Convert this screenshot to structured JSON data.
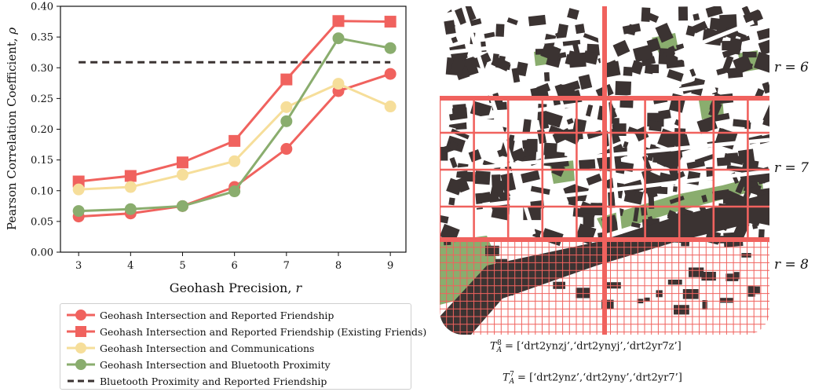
{
  "chart_data": {
    "type": "line",
    "xlabel": "Geohash Precision, r",
    "ylabel": "Pearson Correlation Coefficient, ρ",
    "x": [
      3,
      4,
      5,
      6,
      7,
      8,
      9
    ],
    "xticks": [
      "3",
      "4",
      "5",
      "6",
      "7",
      "8",
      "9"
    ],
    "yticks": [
      "0.00",
      "0.05",
      "0.10",
      "0.15",
      "0.20",
      "0.25",
      "0.30",
      "0.35",
      "0.40"
    ],
    "xlim": [
      2.65,
      9.3
    ],
    "ylim": [
      0,
      0.4
    ],
    "grid": false,
    "legend_placement": "below",
    "series": [
      {
        "name": "Geohash Intersection and Reported Friendship",
        "marker": "circle",
        "color": "#f0625e",
        "values": [
          0.058,
          0.063,
          0.075,
          0.106,
          0.168,
          0.262,
          0.29
        ]
      },
      {
        "name": "Geohash Intersection and Reported Friendship (Existing Friends)",
        "marker": "square",
        "color": "#f0625e",
        "values": [
          0.115,
          0.124,
          0.146,
          0.181,
          0.281,
          0.376,
          0.375
        ]
      },
      {
        "name": "Geohash Intersection and Communications",
        "marker": "circle",
        "color": "#f6de9a",
        "values": [
          0.102,
          0.106,
          0.126,
          0.148,
          0.236,
          0.274,
          0.237
        ]
      },
      {
        "name": "Geohash Intersection and Bluetooth Proximity",
        "marker": "circle",
        "color": "#8aad6e",
        "values": [
          0.067,
          0.07,
          0.075,
          0.099,
          0.213,
          0.348,
          0.332
        ]
      },
      {
        "name": "Bluetooth Proximity and Reported Friendship",
        "marker": "none",
        "color": "#3b3332",
        "dashed": true,
        "values": [
          0.309,
          0.309,
          0.309,
          0.309,
          0.309,
          0.309,
          0.309
        ]
      }
    ]
  },
  "map": {
    "labels": {
      "r6": "r = 6",
      "r7": "r = 7",
      "r8": "r = 8"
    },
    "codes8": {
      "sym": "T",
      "sub": "A",
      "sup": "8",
      "list": "= [‘drt2ynzj’,‘drt2ynyj’,‘drt2yr7z’]"
    },
    "codes7": {
      "sym": "T",
      "sub": "A",
      "sup": "7",
      "list": "= [‘drt2ynz’,‘drt2yny’,‘drt2yr7’]"
    },
    "colors": {
      "grid": "#f0625e",
      "building": "#3b3332",
      "park": "#8aad6e"
    }
  }
}
